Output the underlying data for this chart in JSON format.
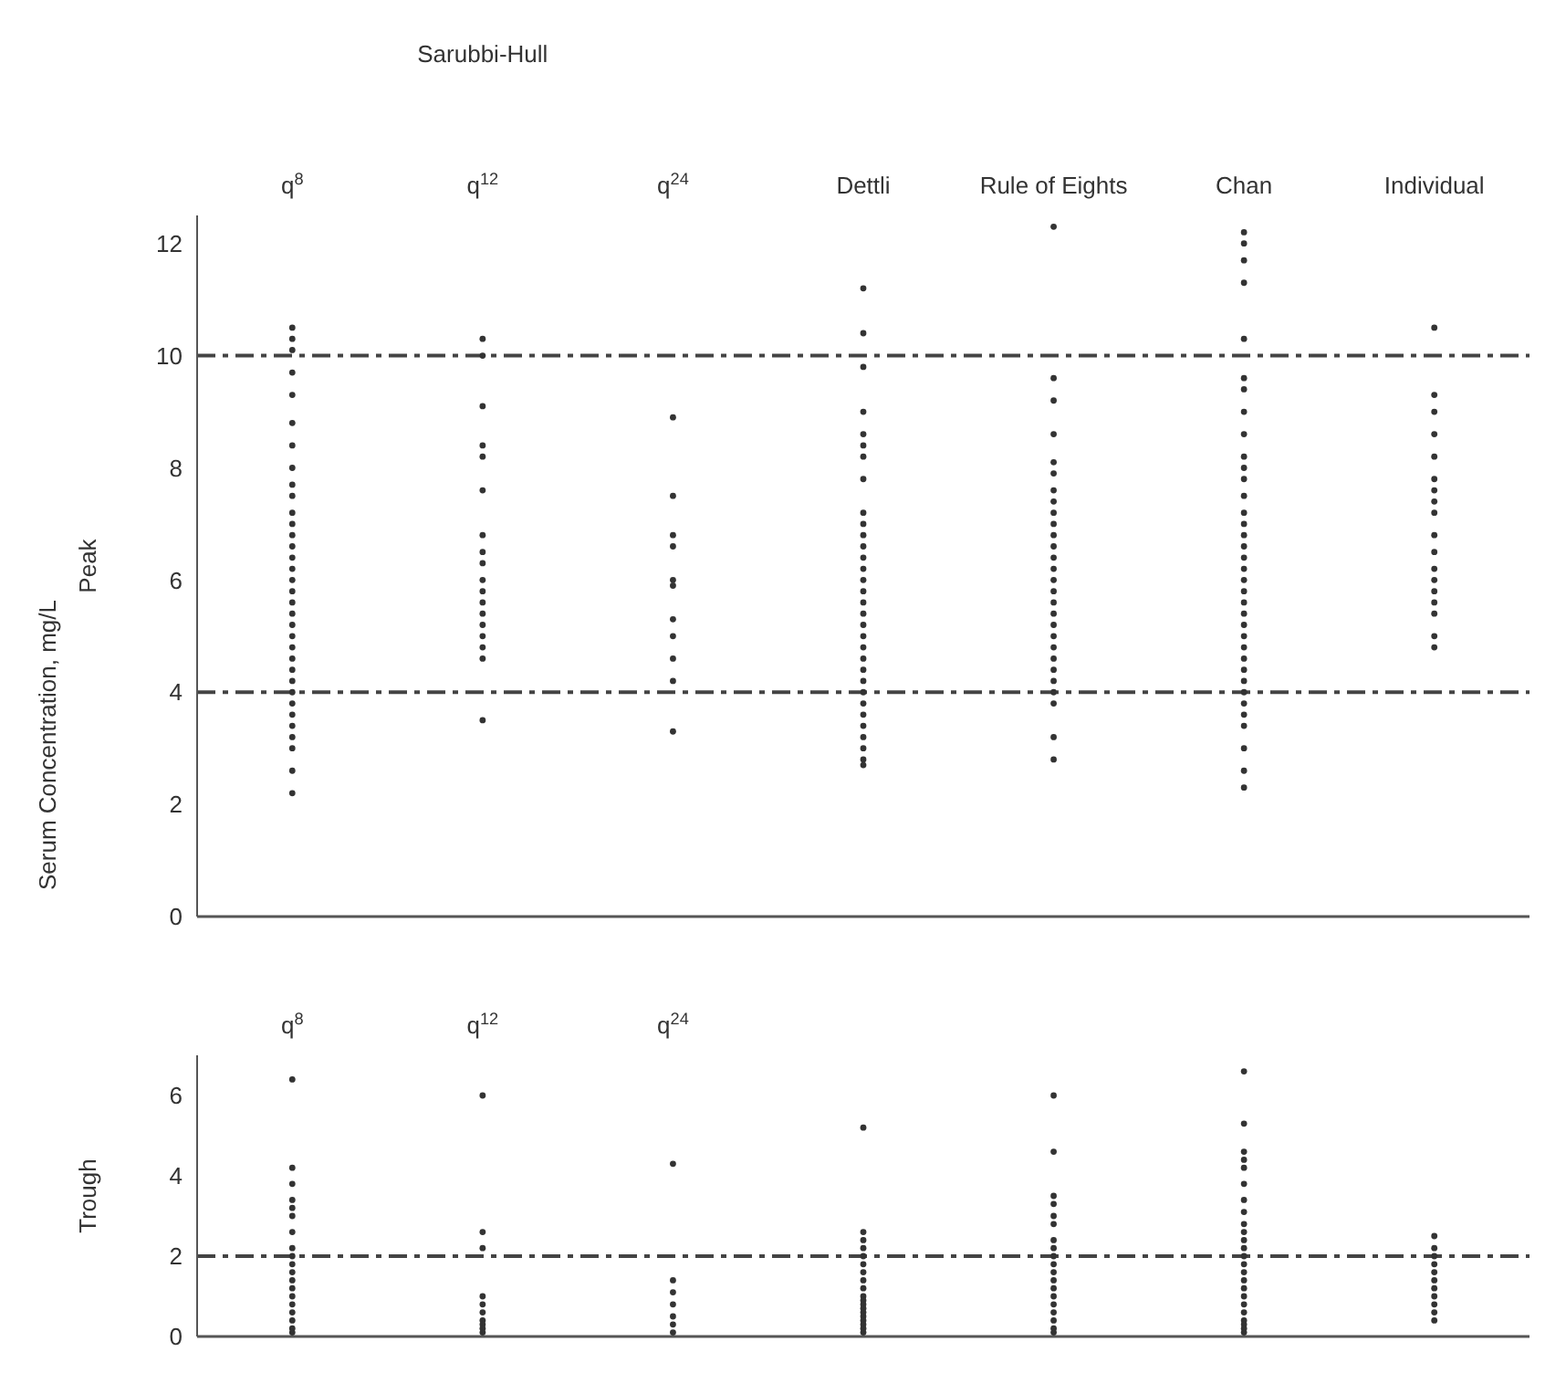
{
  "chart_data": [
    {
      "type": "scatter",
      "ylabel": "Peak",
      "categories": [
        "q$^{8}$",
        "q$^{12}$",
        "q$^{24}$",
        "Dettli",
        "Rule of Eights",
        "Chan",
        "Individual"
      ],
      "annotations": [
        "Sarubbi-Hull",
        "Serum Concentration, mg/L"
      ],
      "ylim": [
        0,
        12.5
      ],
      "yticks": [
        0,
        2,
        4,
        6,
        8,
        10,
        12
      ],
      "grid": false,
      "legend": false,
      "marker": "circle",
      "ref_lines": [
        {
          "axis": "y",
          "value": 10,
          "line_style": "dashed",
          "color": "#444444"
        },
        {
          "axis": "y",
          "value": 4,
          "line_style": "dashed",
          "color": "#444444"
        }
      ],
      "series": [
        {
          "color": "#333333",
          "x": [
            "q$^{8}$",
            "q$^{8}$",
            "q$^{8}$",
            "q$^{8}$",
            "q$^{8}$",
            "q$^{8}$",
            "q$^{8}$",
            "q$^{8}$",
            "q$^{8}$",
            "q$^{8}$",
            "q$^{8}$",
            "q$^{8}$",
            "q$^{8}$",
            "q$^{8}$",
            "q$^{8}$",
            "q$^{8}$",
            "q$^{8}$",
            "q$^{8}$",
            "q$^{8}$",
            "q$^{8}$",
            "q$^{8}$",
            "q$^{8}$",
            "q$^{8}$",
            "q$^{8}$",
            "q$^{8}$",
            "q$^{8}$",
            "q$^{8}$",
            "q$^{8}$",
            "q$^{8}$",
            "q$^{8}$",
            "q$^{8}$",
            "q$^{8}$",
            "q$^{8}$",
            "q$^{8}$"
          ],
          "values": [
            10.5,
            10.3,
            10.1,
            9.7,
            9.3,
            8.8,
            8.4,
            8,
            7.7,
            7.5,
            7.2,
            7,
            6.8,
            6.6,
            6.4,
            6.2,
            6,
            5.8,
            5.6,
            5.4,
            5.2,
            5,
            4.8,
            4.6,
            4.4,
            4.2,
            4,
            3.8,
            3.6,
            3.4,
            3.2,
            3,
            2.6,
            2.2
          ]
        },
        {
          "color": "#333333",
          "x": [
            "q$^{12}$",
            "q$^{12}$",
            "q$^{12}$",
            "q$^{12}$",
            "q$^{12}$",
            "q$^{12}$",
            "q$^{12}$",
            "q$^{12}$",
            "q$^{12}$",
            "q$^{12}$",
            "q$^{12}$",
            "q$^{12}$",
            "q$^{12}$",
            "q$^{12}$",
            "q$^{12}$",
            "q$^{12}$",
            "q$^{12}$",
            "q$^{12}$"
          ],
          "values": [
            10.3,
            10,
            9.1,
            8.4,
            8.2,
            7.6,
            6.8,
            6.5,
            6.3,
            6,
            5.8,
            5.6,
            5.4,
            5.2,
            5,
            4.8,
            4.6,
            3.5
          ]
        },
        {
          "color": "#333333",
          "x": [
            "q$^{24}$",
            "q$^{24}$",
            "q$^{24}$",
            "q$^{24}$",
            "q$^{24}$",
            "q$^{24}$",
            "q$^{24}$",
            "q$^{24}$",
            "q$^{24}$",
            "q$^{24}$",
            "q$^{24}$"
          ],
          "values": [
            8.9,
            7.5,
            6.8,
            6.6,
            6,
            5.9,
            5.3,
            5,
            4.6,
            4.2,
            3.3
          ]
        },
        {
          "color": "#333333",
          "x": [
            "Dettli",
            "Dettli",
            "Dettli",
            "Dettli",
            "Dettli",
            "Dettli",
            "Dettli",
            "Dettli",
            "Dettli",
            "Dettli",
            "Dettli",
            "Dettli",
            "Dettli",
            "Dettli",
            "Dettli",
            "Dettli",
            "Dettli",
            "Dettli",
            "Dettli",
            "Dettli",
            "Dettli",
            "Dettli",
            "Dettli",
            "Dettli",
            "Dettli",
            "Dettli",
            "Dettli",
            "Dettli",
            "Dettli",
            "Dettli",
            "Dettli",
            "Dettli"
          ],
          "values": [
            11.2,
            10.4,
            9.8,
            9,
            8.6,
            8.4,
            8.2,
            7.8,
            7.2,
            7,
            6.8,
            6.6,
            6.4,
            6.2,
            6,
            5.8,
            5.6,
            5.4,
            5.2,
            5,
            4.8,
            4.6,
            4.4,
            4.2,
            4,
            3.8,
            3.6,
            3.4,
            3.2,
            3,
            2.8,
            2.7
          ]
        },
        {
          "color": "#333333",
          "x": [
            "Rule of Eights",
            "Rule of Eights",
            "Rule of Eights",
            "Rule of Eights",
            "Rule of Eights",
            "Rule of Eights",
            "Rule of Eights",
            "Rule of Eights",
            "Rule of Eights",
            "Rule of Eights",
            "Rule of Eights",
            "Rule of Eights",
            "Rule of Eights",
            "Rule of Eights",
            "Rule of Eights",
            "Rule of Eights",
            "Rule of Eights",
            "Rule of Eights",
            "Rule of Eights",
            "Rule of Eights",
            "Rule of Eights",
            "Rule of Eights",
            "Rule of Eights",
            "Rule of Eights",
            "Rule of Eights",
            "Rule of Eights",
            "Rule of Eights",
            "Rule of Eights"
          ],
          "values": [
            12.3,
            9.6,
            9.2,
            8.6,
            8.1,
            7.9,
            7.6,
            7.4,
            7.2,
            7,
            6.8,
            6.6,
            6.4,
            6.2,
            6,
            5.8,
            5.6,
            5.4,
            5.2,
            5,
            4.8,
            4.6,
            4.4,
            4.2,
            4,
            3.8,
            3.2,
            2.8
          ]
        },
        {
          "color": "#333333",
          "x": [
            "Chan",
            "Chan",
            "Chan",
            "Chan",
            "Chan",
            "Chan",
            "Chan",
            "Chan",
            "Chan",
            "Chan",
            "Chan",
            "Chan",
            "Chan",
            "Chan",
            "Chan",
            "Chan",
            "Chan",
            "Chan",
            "Chan",
            "Chan",
            "Chan",
            "Chan",
            "Chan",
            "Chan",
            "Chan",
            "Chan",
            "Chan",
            "Chan",
            "Chan",
            "Chan",
            "Chan",
            "Chan",
            "Chan",
            "Chan",
            "Chan",
            "Chan"
          ],
          "values": [
            12.2,
            12,
            11.7,
            11.3,
            10.3,
            9.6,
            9.4,
            9,
            8.6,
            8.2,
            8,
            7.8,
            7.5,
            7.2,
            7,
            6.8,
            6.6,
            6.4,
            6.2,
            6,
            5.8,
            5.6,
            5.4,
            5.2,
            5,
            4.8,
            4.6,
            4.4,
            4.2,
            4,
            3.8,
            3.6,
            3.4,
            3,
            2.6,
            2.3
          ]
        },
        {
          "color": "#333333",
          "x": [
            "Individual",
            "Individual",
            "Individual",
            "Individual",
            "Individual",
            "Individual",
            "Individual",
            "Individual",
            "Individual",
            "Individual",
            "Individual",
            "Individual",
            "Individual",
            "Individual",
            "Individual",
            "Individual",
            "Individual",
            "Individual"
          ],
          "values": [
            10.5,
            9.3,
            9,
            8.6,
            8.2,
            7.8,
            7.6,
            7.4,
            7.2,
            6.8,
            6.5,
            6.2,
            6,
            5.8,
            5.6,
            5.4,
            5,
            4.8
          ]
        }
      ]
    },
    {
      "type": "scatter",
      "ylabel": "Trough",
      "categories": [
        "q$^{8}$",
        "q$^{12}$",
        "q$^{24}$",
        "Dettli",
        "Rule of Eights",
        "Chan",
        "Individual"
      ],
      "tick_labels": "y",
      "annotations": [
        "q$^{8}$",
        "q$^{12}$",
        "q$^{24}$"
      ],
      "ylim": [
        0,
        7
      ],
      "yticks": [
        0,
        2,
        4,
        6
      ],
      "grid": false,
      "legend": false,
      "marker": "circle",
      "ref_lines": [
        {
          "axis": "y",
          "value": 2,
          "line_style": "dashed",
          "color": "#444444"
        }
      ],
      "series": [
        {
          "color": "#333333",
          "x": [
            "q$^{8}$",
            "q$^{8}$",
            "q$^{8}$",
            "q$^{8}$",
            "q$^{8}$",
            "q$^{8}$",
            "q$^{8}$",
            "q$^{8}$",
            "q$^{8}$",
            "q$^{8}$",
            "q$^{8}$",
            "q$^{8}$",
            "q$^{8}$",
            "q$^{8}$",
            "q$^{8}$",
            "q$^{8}$",
            "q$^{8}$",
            "q$^{8}$",
            "q$^{8}$"
          ],
          "values": [
            6.4,
            4.2,
            3.8,
            3.4,
            3.2,
            3,
            2.6,
            2.2,
            2,
            1.8,
            1.6,
            1.4,
            1.2,
            1,
            0.8,
            0.6,
            0.4,
            0.2,
            0.1
          ]
        },
        {
          "color": "#333333",
          "x": [
            "q$^{12}$",
            "q$^{12}$",
            "q$^{12}$",
            "q$^{12}$",
            "q$^{12}$",
            "q$^{12}$",
            "q$^{12}$",
            "q$^{12}$",
            "q$^{12}$",
            "q$^{12}$"
          ],
          "values": [
            6,
            2.6,
            2.2,
            1,
            0.8,
            0.6,
            0.4,
            0.3,
            0.2,
            0.1
          ]
        },
        {
          "color": "#333333",
          "x": [
            "q$^{24}$",
            "q$^{24}$",
            "q$^{24}$",
            "q$^{24}$",
            "q$^{24}$",
            "q$^{24}$",
            "q$^{24}$"
          ],
          "values": [
            4.3,
            1.4,
            1.1,
            0.8,
            0.5,
            0.3,
            0.1
          ]
        },
        {
          "color": "#333333",
          "x": [
            "Dettli",
            "Dettli",
            "Dettli",
            "Dettli",
            "Dettli",
            "Dettli",
            "Dettli",
            "Dettli",
            "Dettli",
            "Dettli",
            "Dettli",
            "Dettli",
            "Dettli",
            "Dettli",
            "Dettli",
            "Dettli",
            "Dettli",
            "Dettli",
            "Dettli"
          ],
          "values": [
            5.2,
            2.6,
            2.4,
            2.2,
            2,
            1.8,
            1.6,
            1.4,
            1.2,
            1,
            0.9,
            0.8,
            0.7,
            0.6,
            0.5,
            0.4,
            0.3,
            0.2,
            0.1
          ]
        },
        {
          "color": "#333333",
          "x": [
            "Rule of Eights",
            "Rule of Eights",
            "Rule of Eights",
            "Rule of Eights",
            "Rule of Eights",
            "Rule of Eights",
            "Rule of Eights",
            "Rule of Eights",
            "Rule of Eights",
            "Rule of Eights",
            "Rule of Eights",
            "Rule of Eights",
            "Rule of Eights",
            "Rule of Eights",
            "Rule of Eights",
            "Rule of Eights",
            "Rule of Eights",
            "Rule of Eights",
            "Rule of Eights"
          ],
          "values": [
            6,
            4.6,
            3.5,
            3.3,
            3,
            2.8,
            2.4,
            2.2,
            2,
            1.8,
            1.6,
            1.4,
            1.2,
            1,
            0.8,
            0.6,
            0.4,
            0.2,
            0.1
          ]
        },
        {
          "color": "#333333",
          "x": [
            "Chan",
            "Chan",
            "Chan",
            "Chan",
            "Chan",
            "Chan",
            "Chan",
            "Chan",
            "Chan",
            "Chan",
            "Chan",
            "Chan",
            "Chan",
            "Chan",
            "Chan",
            "Chan",
            "Chan",
            "Chan",
            "Chan",
            "Chan",
            "Chan",
            "Chan",
            "Chan",
            "Chan"
          ],
          "values": [
            6.6,
            5.3,
            4.6,
            4.4,
            4.2,
            3.8,
            3.4,
            3.1,
            2.8,
            2.6,
            2.4,
            2.2,
            2,
            1.8,
            1.6,
            1.4,
            1.2,
            1,
            0.8,
            0.6,
            0.4,
            0.3,
            0.2,
            0.1
          ]
        },
        {
          "color": "#333333",
          "x": [
            "Individual",
            "Individual",
            "Individual",
            "Individual",
            "Individual",
            "Individual",
            "Individual",
            "Individual",
            "Individual",
            "Individual",
            "Individual"
          ],
          "values": [
            2.5,
            2.2,
            2,
            1.8,
            1.6,
            1.4,
            1.2,
            1,
            0.8,
            0.6,
            0.4
          ]
        }
      ]
    }
  ]
}
